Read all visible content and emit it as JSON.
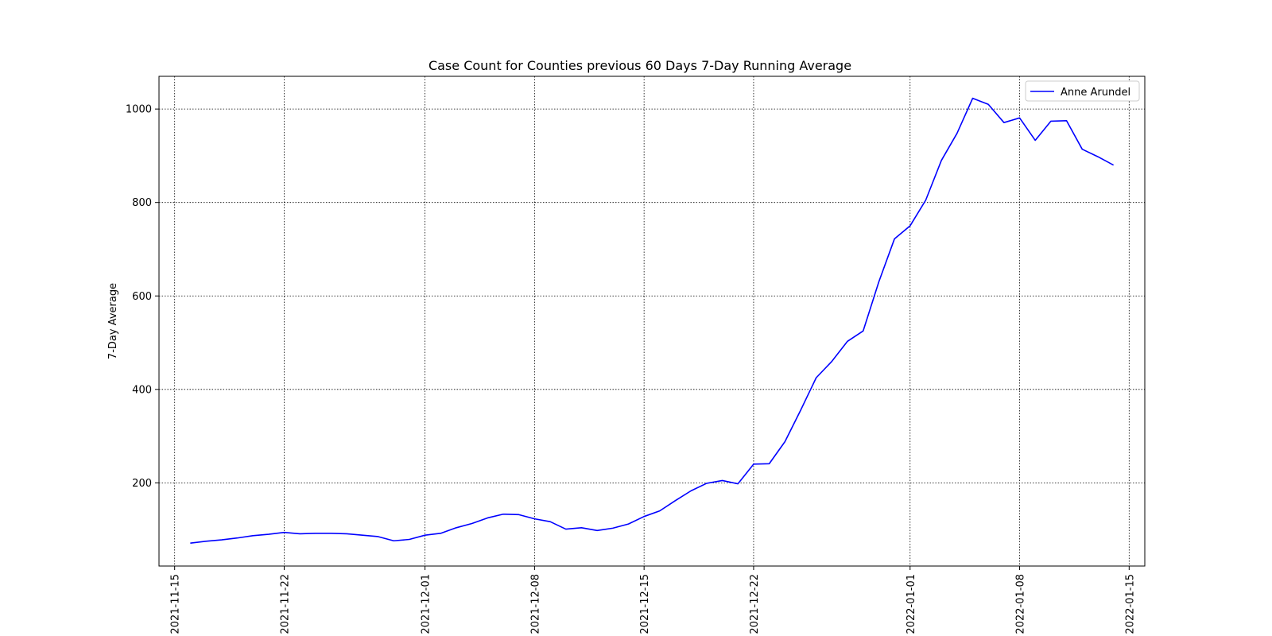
{
  "chart_data": {
    "type": "line",
    "title": "Case Count for Counties previous 60 Days 7-Day Running Average",
    "xlabel": "",
    "ylabel": "7-Day Average",
    "x_range": [
      "2021-11-14",
      "2022-01-16"
    ],
    "ylim": [
      22,
      1070
    ],
    "x_ticks": [
      "2021-11-15",
      "2021-11-22",
      "2021-12-01",
      "2021-12-08",
      "2021-12-15",
      "2021-12-22",
      "2022-01-01",
      "2022-01-08",
      "2022-01-15"
    ],
    "y_ticks": [
      200,
      400,
      600,
      800,
      1000
    ],
    "grid": true,
    "grid_style": "dotted",
    "legend_position": "top-right",
    "series": [
      {
        "name": "Anne Arundel",
        "color": "#0000ff",
        "x": [
          "2021-11-16",
          "2021-11-17",
          "2021-11-18",
          "2021-11-19",
          "2021-11-20",
          "2021-11-21",
          "2021-11-22",
          "2021-11-23",
          "2021-11-24",
          "2021-11-25",
          "2021-11-26",
          "2021-11-27",
          "2021-11-28",
          "2021-11-29",
          "2021-11-30",
          "2021-12-01",
          "2021-12-02",
          "2021-12-03",
          "2021-12-04",
          "2021-12-05",
          "2021-12-06",
          "2021-12-07",
          "2021-12-08",
          "2021-12-09",
          "2021-12-10",
          "2021-12-11",
          "2021-12-12",
          "2021-12-13",
          "2021-12-14",
          "2021-12-15",
          "2021-12-16",
          "2021-12-17",
          "2021-12-18",
          "2021-12-19",
          "2021-12-20",
          "2021-12-21",
          "2021-12-22",
          "2021-12-23",
          "2021-12-24",
          "2021-12-25",
          "2021-12-26",
          "2021-12-27",
          "2021-12-28",
          "2021-12-29",
          "2021-12-30",
          "2021-12-31",
          "2022-01-01",
          "2022-01-02",
          "2022-01-03",
          "2022-01-04",
          "2022-01-05",
          "2022-01-06",
          "2022-01-07",
          "2022-01-08",
          "2022-01-09",
          "2022-01-10",
          "2022-01-11",
          "2022-01-12",
          "2022-01-13",
          "2022-01-14"
        ],
        "values": [
          71,
          75,
          78,
          82,
          87,
          90,
          94,
          91,
          92,
          92,
          91,
          88,
          85,
          76,
          79,
          88,
          92,
          104,
          113,
          125,
          133,
          132,
          123,
          117,
          101,
          104,
          98,
          103,
          112,
          128,
          140,
          162,
          183,
          199,
          205,
          198,
          240,
          241,
          288,
          355,
          425,
          460,
          503,
          525,
          630,
          722,
          750,
          805,
          890,
          948,
          1023,
          1010,
          971,
          981,
          933,
          974,
          975,
          914,
          898,
          880
        ]
      }
    ]
  }
}
